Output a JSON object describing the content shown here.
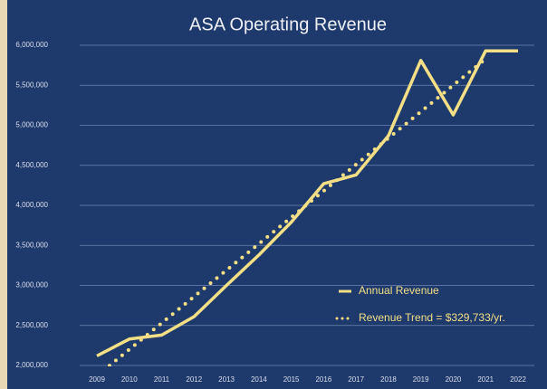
{
  "chart_data": {
    "type": "line",
    "title": "ASA Operating Revenue",
    "categories": [
      "2009",
      "2010",
      "2011",
      "2012",
      "2013",
      "2014",
      "2015",
      "2016",
      "2017",
      "2018",
      "2019",
      "2020",
      "2021",
      "2022"
    ],
    "series": [
      {
        "name": "Annual Revenue",
        "color": "#f3df85",
        "style": "solid",
        "values": [
          2120000,
          2330000,
          2380000,
          2610000,
          3000000,
          3380000,
          3790000,
          4270000,
          4380000,
          4870000,
          5810000,
          5130000,
          5930000,
          5930000
        ]
      },
      {
        "name": "Revenue Trend = $329,733/yr.",
        "color": "#f3df85",
        "style": "dotted",
        "values": [
          1870000,
          2200000,
          2530000,
          2860000,
          3190000,
          3520000,
          3850000,
          4180000,
          4510000,
          4840000,
          5170000,
          5500000,
          5830000,
          null
        ]
      }
    ],
    "ylim": [
      2000000,
      6000000
    ],
    "yticks": [
      {
        "value": 2000000,
        "label": "2,000,000"
      },
      {
        "value": 2500000,
        "label": "2,500,000"
      },
      {
        "value": 3000000,
        "label": "3,000,000"
      },
      {
        "value": 3500000,
        "label": "3,500,000"
      },
      {
        "value": 4000000,
        "label": "4,000,000"
      },
      {
        "value": 4500000,
        "label": "4,500,000"
      },
      {
        "value": 5000000,
        "label": "5,000,000"
      },
      {
        "value": 5500000,
        "label": "5,500,000"
      },
      {
        "value": 6000000,
        "label": "6,000,000"
      }
    ],
    "grid": true,
    "legend": "lower right"
  }
}
